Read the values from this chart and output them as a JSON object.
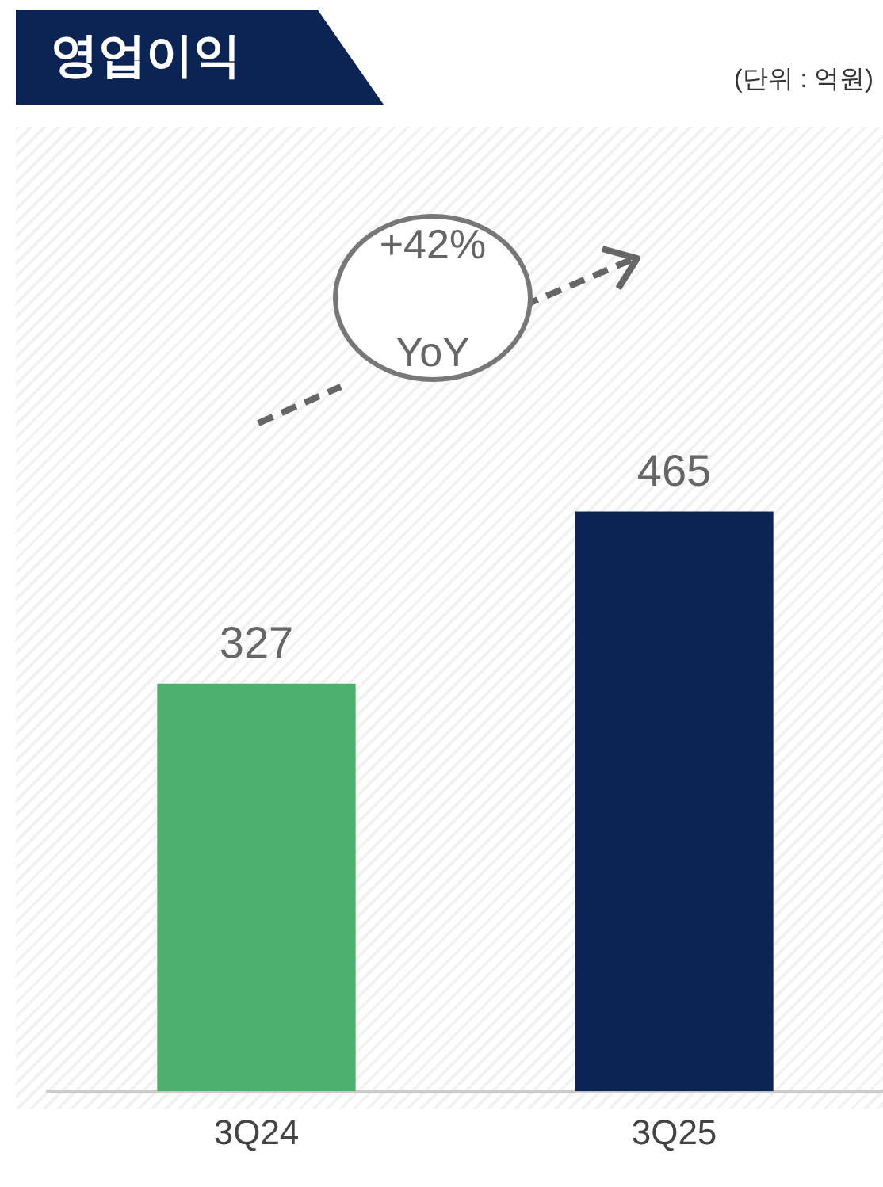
{
  "chart_data": {
    "type": "bar",
    "title": "영업이익",
    "categories": [
      "3Q24",
      "3Q25"
    ],
    "values": [
      327,
      465
    ],
    "colors": [
      "#4caf6e",
      "#0b2454"
    ],
    "data_labels": true,
    "annotations": [
      "(단위 : 억원)",
      "+42% YoY"
    ],
    "legend": false,
    "grid": false
  }
}
